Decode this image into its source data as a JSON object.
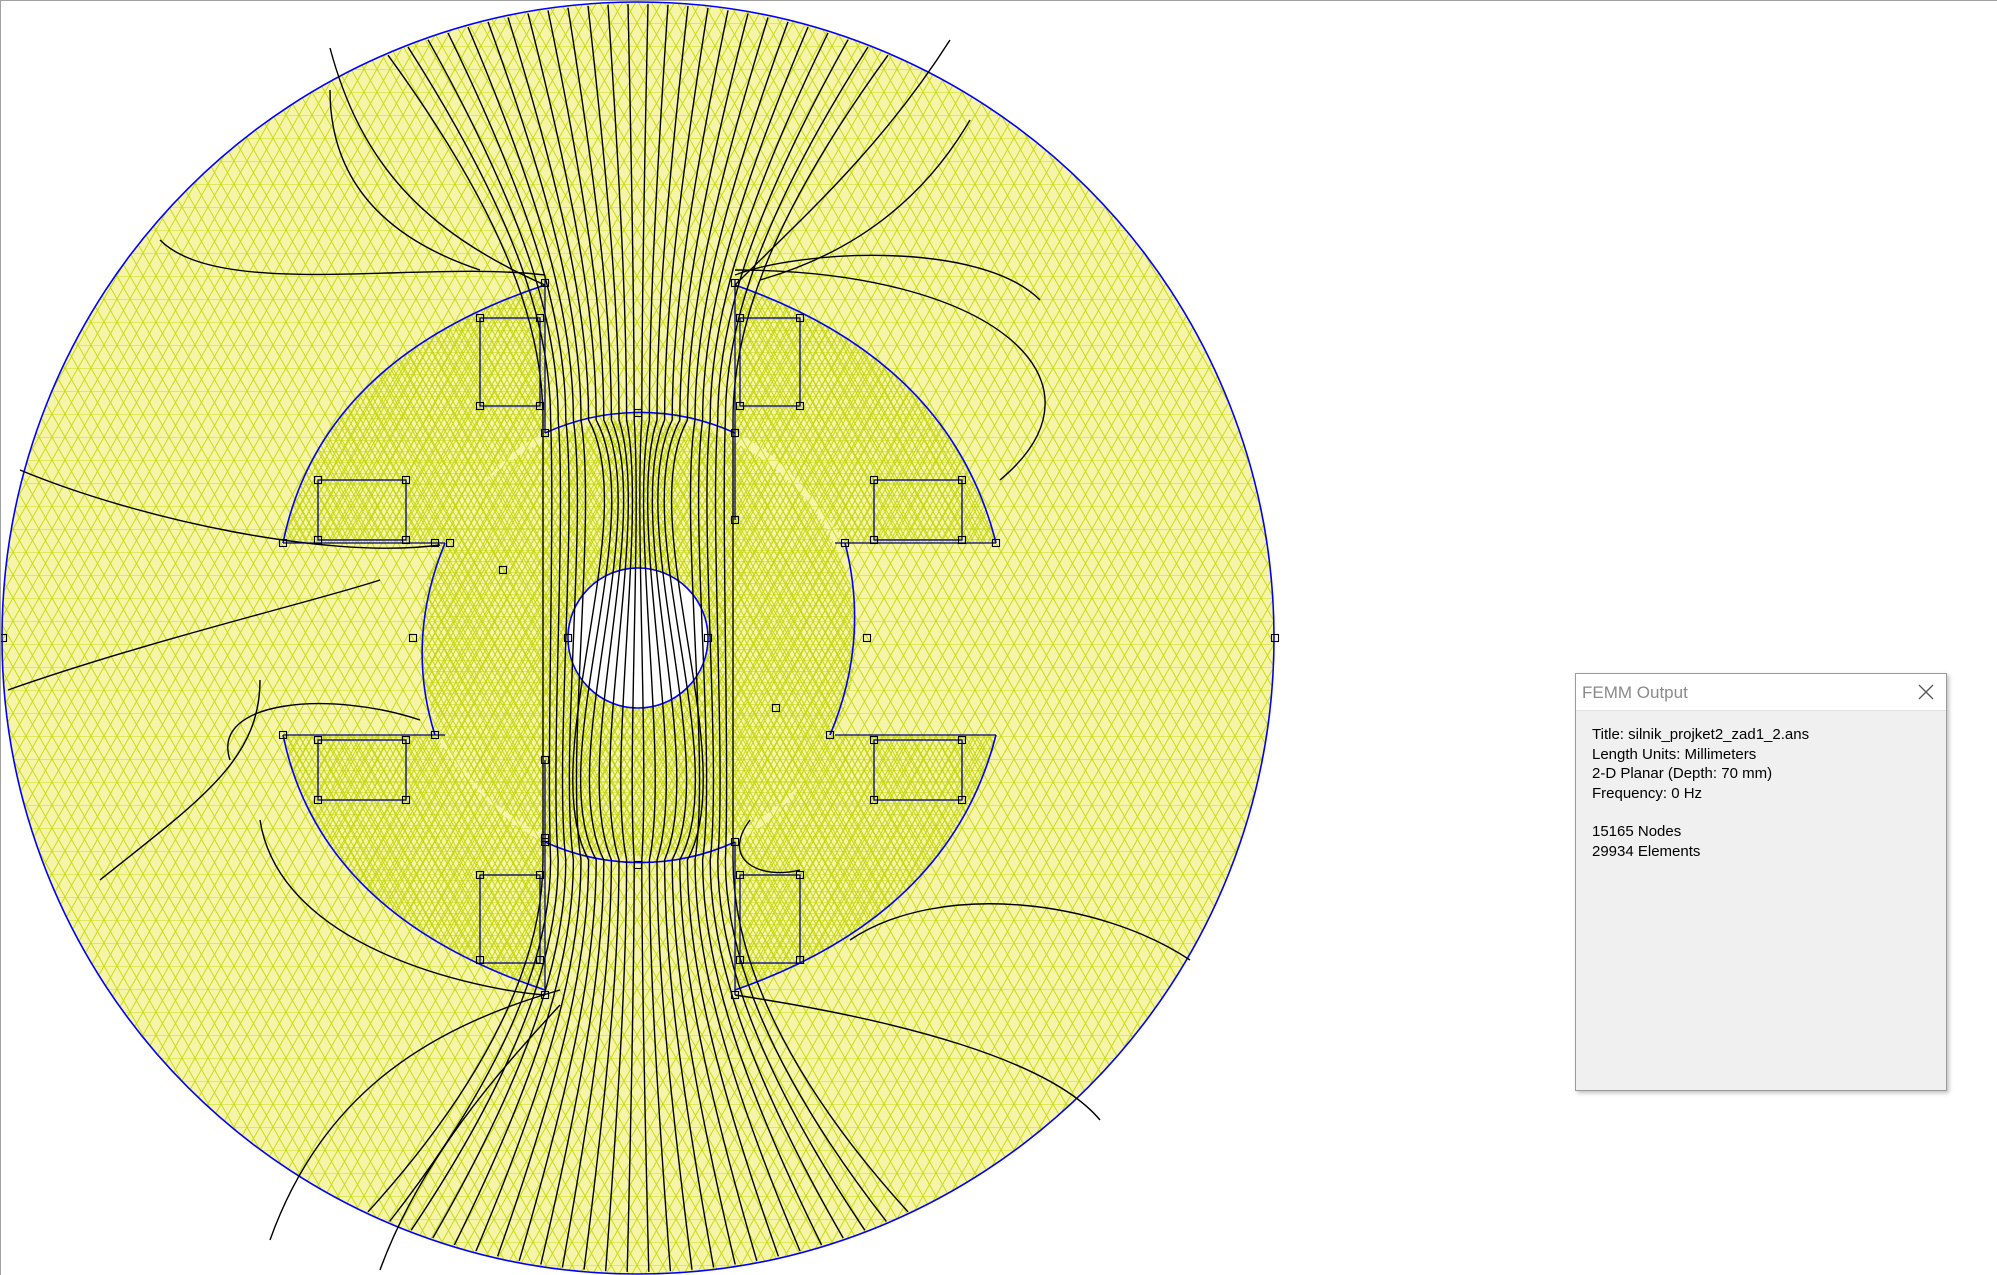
{
  "viewport": {
    "mesh_color": "#c8dc14",
    "fill_color": "#f5f4a8",
    "boundary_color": "#0000ff",
    "flux_line_color": "#000000",
    "node_marker_color": "#000000"
  },
  "output_window": {
    "title": "FEMM Output",
    "close_icon": "close-x-icon",
    "lines": {
      "title": "Title: silnik_projket2_zad1_2.ans",
      "units": "Length Units: Millimeters",
      "planar": "2-D Planar (Depth: 70 mm)",
      "frequency": "Frequency: 0 Hz",
      "nodes": "15165 Nodes",
      "elements": "29934 Elements"
    }
  }
}
